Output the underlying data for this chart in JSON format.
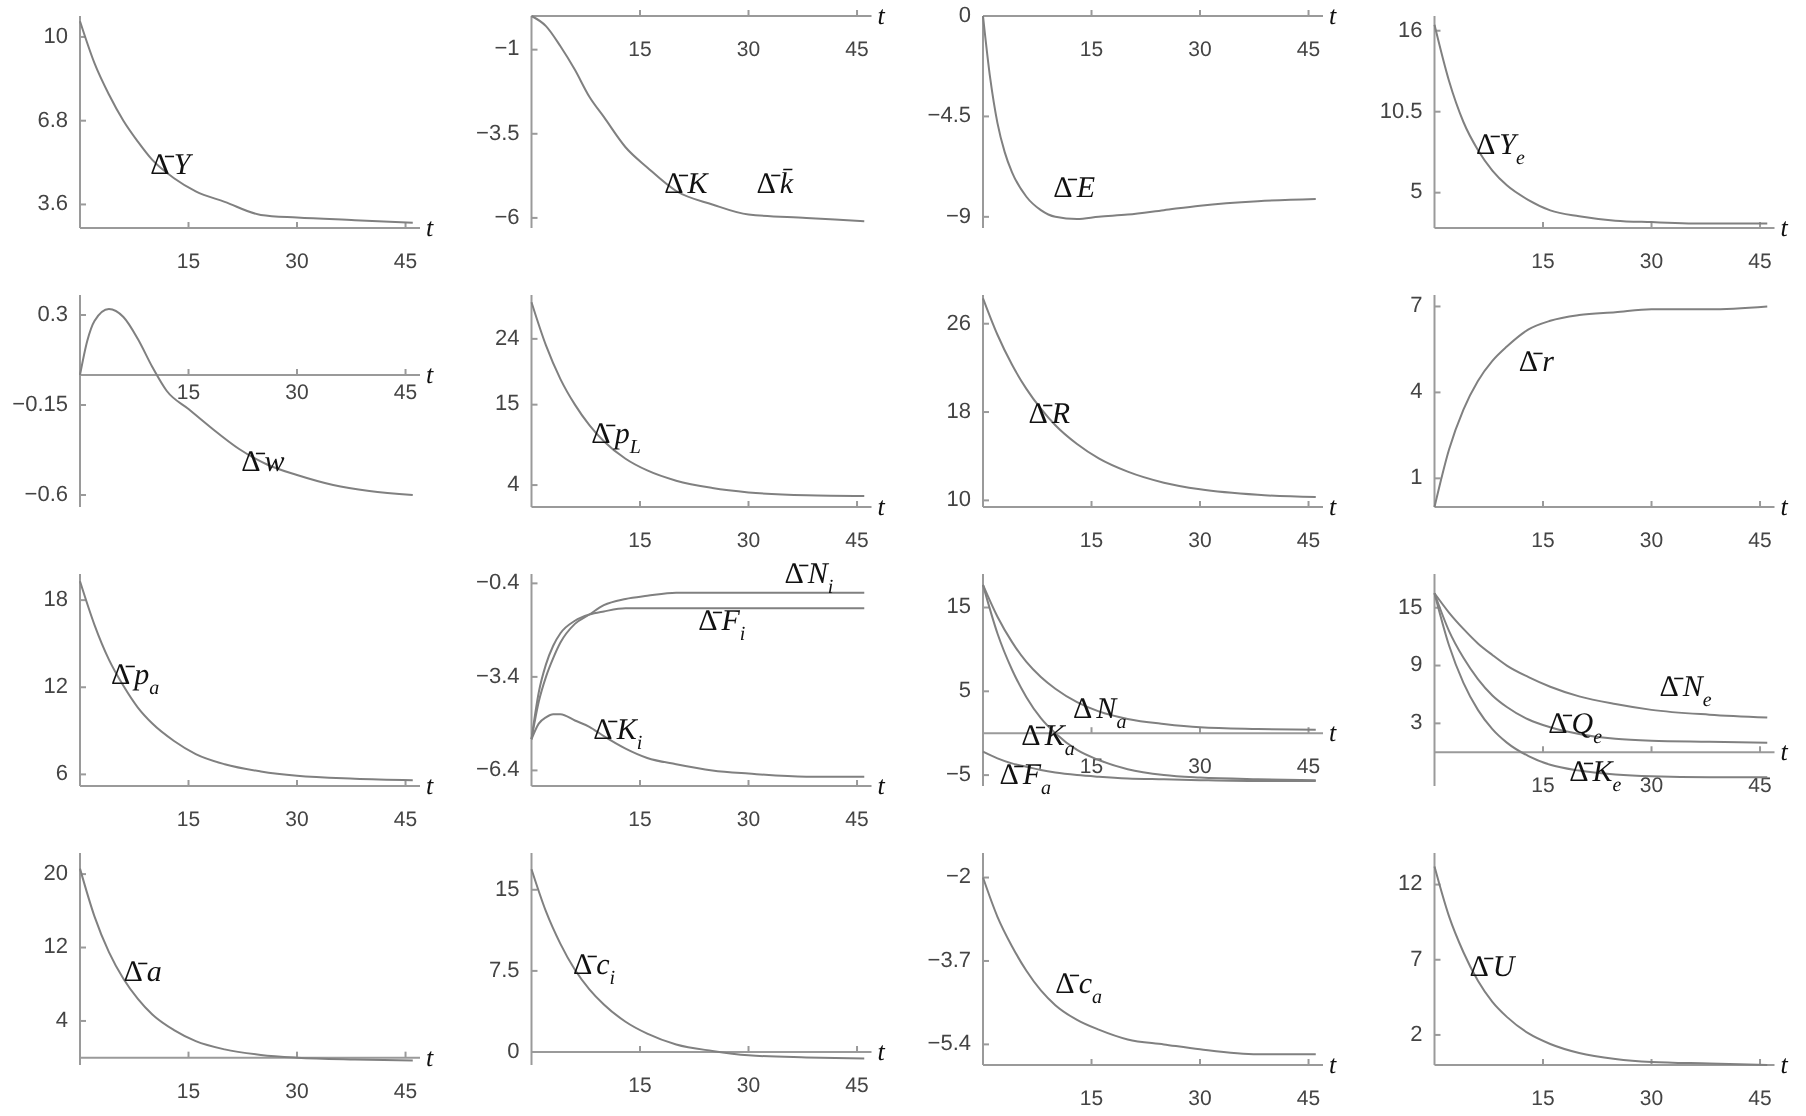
{
  "chart_data": [
    {
      "type": "line",
      "xlabel": "t",
      "xlim": [
        0,
        47
      ],
      "xticks": [
        15,
        30,
        45
      ],
      "ylim": [
        2.7,
        10.8
      ],
      "yticks": [
        3.6,
        6.8,
        10
      ],
      "x": [
        0,
        2,
        4,
        6,
        8,
        10,
        13,
        16,
        20,
        25,
        30,
        38,
        46
      ],
      "series": [
        {
          "color": "#808080",
          "values": [
            10.6,
            9.0,
            7.8,
            6.8,
            6.0,
            5.3,
            4.6,
            4.1,
            3.7,
            3.2,
            3.1,
            3.0,
            2.9
          ]
        }
      ],
      "annotations": [
        {
          "text": "Δ̄Y",
          "x": 10,
          "y": 5.3
        }
      ]
    },
    {
      "type": "line",
      "xlabel": "t",
      "xlim": [
        0,
        47
      ],
      "xticks": [
        15,
        30,
        45
      ],
      "ylim": [
        -6.3,
        0
      ],
      "yticks": [
        -6,
        -3.5,
        -1
      ],
      "x": [
        0,
        2,
        4,
        6,
        8,
        10,
        13,
        16,
        20,
        25,
        30,
        38,
        46
      ],
      "series": [
        {
          "color": "#808080",
          "values": [
            0,
            -0.3,
            -0.9,
            -1.6,
            -2.4,
            -3.0,
            -3.9,
            -4.5,
            -5.2,
            -5.6,
            -5.9,
            -6.0,
            -6.1
          ]
        }
      ],
      "annotations": [
        {
          "text": "Δ̄K",
          "x": 20,
          "y": -5.2
        },
        {
          "text": "Δ̄k̄",
          "x": 30,
          "y": -5.9
        }
      ]
    },
    {
      "type": "line",
      "xlabel": "t",
      "xlim": [
        0,
        47
      ],
      "xticks": [
        15,
        30,
        45
      ],
      "ylim": [
        -9.5,
        0
      ],
      "yticks": [
        -9,
        -4.5,
        0
      ],
      "x": [
        0,
        1,
        2,
        3,
        4,
        6,
        8,
        10,
        13,
        16,
        20,
        25,
        30,
        38,
        46
      ],
      "series": [
        {
          "color": "#808080",
          "values": [
            0,
            -2.8,
            -4.8,
            -6.1,
            -7.0,
            -8.1,
            -8.7,
            -9.0,
            -9.1,
            -9.0,
            -8.9,
            -8.7,
            -8.5,
            -8.3,
            -8.2
          ]
        }
      ],
      "annotations": [
        {
          "text": "Δ̄E",
          "x": 10,
          "y": -9.0
        }
      ]
    },
    {
      "type": "line",
      "xlabel": "t",
      "xlim": [
        0,
        47
      ],
      "xticks": [
        15,
        30,
        45
      ],
      "ylim": [
        2.6,
        17
      ],
      "yticks": [
        5,
        10.5,
        16
      ],
      "x": [
        0,
        2,
        4,
        6,
        8,
        10,
        13,
        16,
        20,
        25,
        30,
        38,
        46
      ],
      "series": [
        {
          "color": "#808080",
          "values": [
            16.4,
            12.6,
            9.8,
            7.9,
            6.5,
            5.5,
            4.5,
            3.8,
            3.4,
            3.1,
            3.0,
            2.9,
            2.9
          ]
        }
      ],
      "annotations": [
        {
          "text": "Δ̄Y$_{e}$",
          "x": 6,
          "y": 7.9
        }
      ]
    },
    {
      "type": "line",
      "xlabel": "t",
      "xlim": [
        0,
        47
      ],
      "xticks": [
        15,
        30,
        45
      ],
      "ylim": [
        -0.66,
        0.4
      ],
      "yticks": [
        -0.6,
        -0.15,
        0.3
      ],
      "x": [
        0,
        1,
        2,
        4,
        6,
        8,
        10,
        12,
        15,
        18,
        22,
        26,
        30,
        35,
        40,
        46
      ],
      "series": [
        {
          "color": "#808080",
          "values": [
            0,
            0.17,
            0.27,
            0.33,
            0.29,
            0.18,
            0.04,
            -0.08,
            -0.17,
            -0.26,
            -0.37,
            -0.45,
            -0.5,
            -0.55,
            -0.58,
            -0.6
          ]
        }
      ],
      "annotations": [
        {
          "text": "Δ̄w",
          "x": 22,
          "y": -0.37
        }
      ]
    },
    {
      "type": "line",
      "xlabel": "t",
      "xlim": [
        0,
        47
      ],
      "xticks": [
        15,
        30,
        45
      ],
      "ylim": [
        1,
        30
      ],
      "yticks": [
        4,
        15,
        24
      ],
      "x": [
        0,
        2,
        4,
        6,
        8,
        10,
        13,
        16,
        20,
        25,
        30,
        38,
        46
      ],
      "series": [
        {
          "color": "#808080",
          "values": [
            29.0,
            23.1,
            18.5,
            15.0,
            12.2,
            10.0,
            7.6,
            6.0,
            4.6,
            3.6,
            3.0,
            2.6,
            2.5
          ]
        }
      ],
      "annotations": [
        {
          "text": "Δ̄p$_{L}$",
          "x": 8,
          "y": 12.2
        }
      ]
    },
    {
      "type": "line",
      "xlabel": "t",
      "xlim": [
        0,
        47
      ],
      "xticks": [
        15,
        30,
        45
      ],
      "ylim": [
        9.4,
        28.6
      ],
      "yticks": [
        10,
        18,
        26
      ],
      "x": [
        0,
        2,
        4,
        6,
        8,
        10,
        13,
        16,
        20,
        25,
        30,
        38,
        46
      ],
      "series": [
        {
          "color": "#808080",
          "values": [
            28.3,
            25.0,
            22.3,
            20.1,
            18.3,
            16.8,
            15.1,
            13.8,
            12.6,
            11.6,
            11.0,
            10.5,
            10.3
          ]
        }
      ],
      "annotations": [
        {
          "text": "Δ̄R",
          "x": 6,
          "y": 20.1
        }
      ]
    },
    {
      "type": "line",
      "xlabel": "t",
      "xlim": [
        0,
        47
      ],
      "xticks": [
        15,
        30,
        45
      ],
      "ylim": [
        0,
        7.4
      ],
      "yticks": [
        1,
        4,
        7
      ],
      "x": [
        0,
        2,
        4,
        6,
        8,
        10,
        13,
        16,
        20,
        25,
        30,
        38,
        46
      ],
      "series": [
        {
          "color": "#808080",
          "values": [
            0,
            2.0,
            3.4,
            4.4,
            5.1,
            5.6,
            6.2,
            6.5,
            6.7,
            6.8,
            6.9,
            6.9,
            7.0
          ]
        }
      ],
      "annotations": [
        {
          "text": "Δ̄r",
          "x": 10,
          "y": 5.6
        }
      ]
    },
    {
      "type": "line",
      "xlabel": "t",
      "xlim": [
        0,
        47
      ],
      "xticks": [
        15,
        30,
        45
      ],
      "ylim": [
        5.2,
        19.8
      ],
      "yticks": [
        6,
        12,
        18
      ],
      "x": [
        0,
        2,
        4,
        6,
        8,
        10,
        13,
        16,
        20,
        25,
        30,
        38,
        46
      ],
      "series": [
        {
          "color": "#808080",
          "values": [
            19.3,
            16.3,
            13.9,
            12.1,
            10.6,
            9.5,
            8.3,
            7.4,
            6.7,
            6.2,
            5.9,
            5.7,
            5.6
          ]
        }
      ],
      "annotations": [
        {
          "text": "Δ̄p$_{a}$",
          "x": 4,
          "y": 13.9
        }
      ]
    },
    {
      "type": "line",
      "xlabel": "t",
      "xlim": [
        0,
        47
      ],
      "xticks": [
        15,
        30,
        45
      ],
      "ylim": [
        -6.9,
        -0.1
      ],
      "yticks": [
        -6.4,
        -3.4,
        -0.4
      ],
      "x": [
        0,
        1,
        2,
        3,
        4,
        6,
        8,
        10,
        13,
        16,
        20,
        25,
        30,
        38,
        46
      ],
      "series": [
        {
          "color": "#808080",
          "values": [
            -5.4,
            -4.2,
            -3.4,
            -2.8,
            -2.3,
            -1.7,
            -1.4,
            -1.1,
            -0.9,
            -0.8,
            -0.7,
            -0.7,
            -0.7,
            -0.7,
            -0.7
          ]
        },
        {
          "color": "#808080",
          "values": [
            -5.4,
            -3.9,
            -3.0,
            -2.4,
            -2.0,
            -1.6,
            -1.4,
            -1.3,
            -1.2,
            -1.2,
            -1.2,
            -1.2,
            -1.2,
            -1.2,
            -1.2
          ]
        },
        {
          "color": "#808080",
          "values": [
            -5.4,
            -4.9,
            -4.7,
            -4.6,
            -4.6,
            -4.8,
            -5.0,
            -5.3,
            -5.7,
            -6.0,
            -6.2,
            -6.4,
            -6.5,
            -6.6,
            -6.6
          ]
        }
      ],
      "annotations": [
        {
          "text": "Δ̄N$_{i}$",
          "x": 30,
          "y": -0.7
        },
        {
          "text": "Δ̄F$_{i}$",
          "x": 20,
          "y": -1.2
        },
        {
          "text": "Δ̄K$_{i}$",
          "x": 8,
          "y": -5.0
        }
      ]
    },
    {
      "type": "line",
      "xlabel": "t",
      "xlim": [
        0,
        47
      ],
      "xticks": [
        15,
        30,
        45
      ],
      "ylim": [
        -6.3,
        19
      ],
      "yticks": [
        -5,
        5,
        15
      ],
      "x": [
        0,
        2,
        4,
        6,
        8,
        10,
        13,
        16,
        20,
        25,
        30,
        38,
        46
      ],
      "series": [
        {
          "color": "#808080",
          "values": [
            17.7,
            13.9,
            10.9,
            8.5,
            6.7,
            5.3,
            3.7,
            2.6,
            1.7,
            1.1,
            0.7,
            0.5,
            0.4
          ]
        },
        {
          "color": "#808080",
          "values": [
            17.7,
            11.9,
            7.6,
            4.3,
            1.8,
            0.0,
            -2.0,
            -3.2,
            -4.3,
            -5.0,
            -5.3,
            -5.5,
            -5.6
          ]
        },
        {
          "color": "#808080",
          "values": [
            -2.2,
            -3.0,
            -3.6,
            -4.0,
            -4.4,
            -4.7,
            -5.0,
            -5.2,
            -5.4,
            -5.5,
            -5.6,
            -5.7,
            -5.7
          ]
        }
      ],
      "annotations": [
        {
          "text": "ΔN$_{a}$",
          "x": 13,
          "y": 3.7
        },
        {
          "text": "Δ̄K$_{a}$",
          "x": 10,
          "y": 0.0
        },
        {
          "text": "Δ̄F$_{a}$",
          "x": 2,
          "y": -3.0
        }
      ]
    },
    {
      "type": "line",
      "xlabel": "t",
      "xlim": [
        0,
        47
      ],
      "xticks": [
        15,
        30,
        45
      ],
      "ylim": [
        -3.5,
        18.5
      ],
      "yticks": [
        3,
        9,
        15
      ],
      "x": [
        0,
        2,
        4,
        6,
        8,
        10,
        13,
        16,
        20,
        25,
        30,
        38,
        46
      ],
      "series": [
        {
          "color": "#808080",
          "values": [
            16.5,
            14.5,
            12.8,
            11.3,
            10.1,
            9.0,
            7.8,
            6.8,
            5.8,
            5.0,
            4.4,
            3.9,
            3.6
          ]
        },
        {
          "color": "#808080",
          "values": [
            16.5,
            12.6,
            9.8,
            7.6,
            5.9,
            4.7,
            3.4,
            2.6,
            1.9,
            1.4,
            1.2,
            1.1,
            1.0
          ]
        },
        {
          "color": "#808080",
          "values": [
            16.5,
            11.1,
            7.2,
            4.4,
            2.4,
            1.0,
            -0.4,
            -1.3,
            -1.9,
            -2.3,
            -2.5,
            -2.6,
            -2.6
          ]
        }
      ],
      "annotations": [
        {
          "text": "Δ̄N$_{e}$",
          "x": 30,
          "y": 4.4
        },
        {
          "text": "Δ̄Q$_{e}$",
          "x": 16,
          "y": 2.6
        },
        {
          "text": "Δ̄K$_{e}$",
          "x": 20,
          "y": -1.9
        }
      ]
    },
    {
      "type": "line",
      "xlabel": "t",
      "xlim": [
        0,
        47
      ],
      "xticks": [
        15,
        30,
        45
      ],
      "ylim": [
        -0.8,
        22.3
      ],
      "yticks": [
        4,
        12,
        20
      ],
      "x": [
        0,
        2,
        4,
        6,
        8,
        10,
        13,
        16,
        20,
        25,
        30,
        38,
        46
      ],
      "series": [
        {
          "color": "#808080",
          "values": [
            20.6,
            15.4,
            11.5,
            8.6,
            6.4,
            4.7,
            3.0,
            1.8,
            0.9,
            0.3,
            0.0,
            -0.2,
            -0.3
          ]
        }
      ],
      "annotations": [
        {
          "text": "Δ̄a",
          "x": 6,
          "y": 8.6
        }
      ]
    },
    {
      "type": "line",
      "xlabel": "t",
      "xlim": [
        0,
        47
      ],
      "xticks": [
        15,
        30,
        45
      ],
      "ylim": [
        -1.2,
        18.4
      ],
      "yticks": [
        0,
        7.5,
        15
      ],
      "x": [
        0,
        2,
        4,
        6,
        8,
        10,
        13,
        16,
        20,
        25,
        30,
        38,
        46
      ],
      "series": [
        {
          "color": "#808080",
          "values": [
            16.9,
            13.0,
            10.0,
            7.6,
            5.8,
            4.4,
            2.8,
            1.7,
            0.7,
            0.1,
            -0.3,
            -0.5,
            -0.6
          ]
        }
      ],
      "annotations": [
        {
          "text": "Δ̄c$_{i}$",
          "x": 6,
          "y": 7.6
        }
      ]
    },
    {
      "type": "line",
      "xlabel": "t",
      "xlim": [
        0,
        47
      ],
      "xticks": [
        15,
        30,
        45
      ],
      "ylim": [
        -5.82,
        -1.5
      ],
      "yticks": [
        -5.4,
        -3.7,
        -2
      ],
      "x": [
        0,
        2,
        4,
        6,
        8,
        10,
        13,
        16,
        20,
        25,
        30,
        38,
        46
      ],
      "series": [
        {
          "color": "#808080",
          "values": [
            -2.0,
            -2.8,
            -3.4,
            -3.9,
            -4.3,
            -4.6,
            -4.9,
            -5.1,
            -5.3,
            -5.4,
            -5.5,
            -5.6,
            -5.6
          ]
        }
      ],
      "annotations": [
        {
          "text": "Δ̄c$_{a}$",
          "x": 10,
          "y": -4.6
        }
      ]
    },
    {
      "type": "line",
      "xlabel": "t",
      "xlim": [
        0,
        47
      ],
      "xticks": [
        15,
        30,
        45
      ],
      "ylim": [
        0,
        14.1
      ],
      "yticks": [
        2,
        7,
        12
      ],
      "x": [
        0,
        2,
        4,
        6,
        8,
        10,
        13,
        16,
        20,
        25,
        30,
        38,
        46
      ],
      "series": [
        {
          "color": "#808080",
          "values": [
            13.2,
            9.9,
            7.5,
            5.6,
            4.2,
            3.2,
            2.1,
            1.4,
            0.8,
            0.4,
            0.2,
            0.1,
            0.0
          ]
        }
      ],
      "annotations": [
        {
          "text": "Δ̄U",
          "x": 4,
          "y": 7.5
        }
      ]
    }
  ]
}
